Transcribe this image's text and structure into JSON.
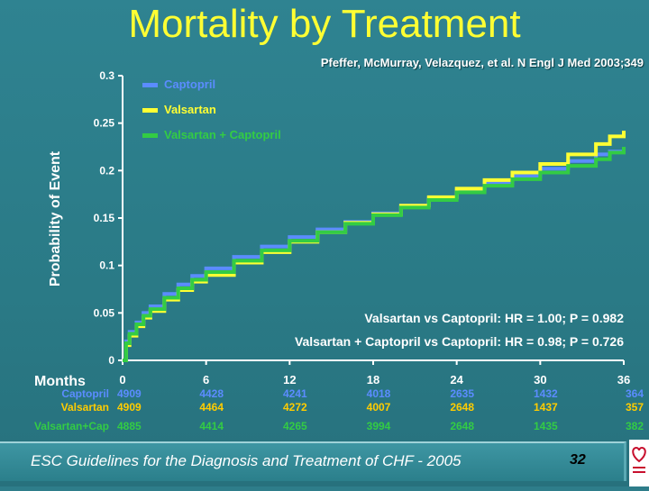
{
  "slide": {
    "title": "Mortality by Treatment",
    "citation": "Pfeffer, McMurray, Velazquez, et al. N Engl J Med 2003;349",
    "footer": "ESC Guidelines for the Diagnosis and Treatment of CHF - 2005",
    "page_number": "32"
  },
  "chart_data": {
    "type": "line",
    "xlabel": "Months",
    "ylabel": "Probability of Event",
    "xlim": [
      0,
      36
    ],
    "ylim": [
      0,
      0.3
    ],
    "x_ticks": [
      "0",
      "6",
      "12",
      "18",
      "24",
      "30",
      "36"
    ],
    "y_ticks": [
      "0",
      "0.05",
      "0.1",
      "0.15",
      "0.2",
      "0.25",
      "0.3"
    ],
    "legend_position": "top-left",
    "colors": {
      "captopril": "#5b8cff",
      "valsartan": "#ffff33",
      "combo": "#33cc44"
    },
    "series": [
      {
        "name": "Captopril",
        "color": "#5b8cff",
        "x": [
          0,
          0.25,
          0.5,
          1,
          1.5,
          2,
          3,
          4,
          5,
          6,
          8,
          10,
          12,
          14,
          16,
          18,
          20,
          22,
          24,
          26,
          28,
          30,
          32,
          34,
          35,
          36
        ],
        "y": [
          0,
          0.02,
          0.03,
          0.04,
          0.05,
          0.057,
          0.07,
          0.08,
          0.089,
          0.097,
          0.109,
          0.12,
          0.13,
          0.138,
          0.146,
          0.155,
          0.163,
          0.171,
          0.179,
          0.187,
          0.194,
          0.202,
          0.21,
          0.217,
          0.22,
          0.223
        ]
      },
      {
        "name": "Valsartan",
        "color": "#ffff33",
        "x": [
          0,
          0.25,
          0.5,
          1,
          1.5,
          2,
          3,
          4,
          5,
          6,
          8,
          10,
          12,
          14,
          16,
          18,
          20,
          22,
          24,
          26,
          28,
          30,
          32,
          34,
          35,
          36
        ],
        "y": [
          0,
          0.016,
          0.026,
          0.036,
          0.045,
          0.052,
          0.064,
          0.074,
          0.083,
          0.09,
          0.103,
          0.114,
          0.125,
          0.135,
          0.145,
          0.154,
          0.163,
          0.172,
          0.181,
          0.19,
          0.198,
          0.207,
          0.217,
          0.228,
          0.236,
          0.242
        ]
      },
      {
        "name": "Valsartan + Captopril",
        "color": "#33cc44",
        "x": [
          0,
          0.25,
          0.5,
          1,
          1.5,
          2,
          3,
          4,
          5,
          6,
          8,
          10,
          12,
          14,
          16,
          18,
          20,
          22,
          24,
          26,
          28,
          30,
          32,
          34,
          35,
          36
        ],
        "y": [
          0,
          0.018,
          0.028,
          0.038,
          0.047,
          0.054,
          0.066,
          0.076,
          0.085,
          0.093,
          0.105,
          0.116,
          0.126,
          0.135,
          0.144,
          0.153,
          0.161,
          0.169,
          0.177,
          0.184,
          0.191,
          0.198,
          0.205,
          0.212,
          0.219,
          0.225
        ]
      }
    ],
    "annotations": [
      "Valsartan vs Captopril: HR = 1.00; P = 0.982",
      "Valsartan + Captopril vs Captopril: HR = 0.98; P = 0.726"
    ],
    "at_risk": [
      {
        "label": "Captopril",
        "color": "#5b8cff",
        "values": [
          "4909",
          "4428",
          "4241",
          "4018",
          "2635",
          "1432",
          "364"
        ]
      },
      {
        "label": "Valsartan",
        "color": "#ffcc00",
        "values": [
          "4909",
          "4464",
          "4272",
          "4007",
          "2648",
          "1437",
          "357"
        ]
      },
      {
        "label": "Valsartan+Cap",
        "color": "#33cc44",
        "values": [
          "4885",
          "4414",
          "4265",
          "3994",
          "2648",
          "1435",
          "382"
        ]
      }
    ]
  }
}
